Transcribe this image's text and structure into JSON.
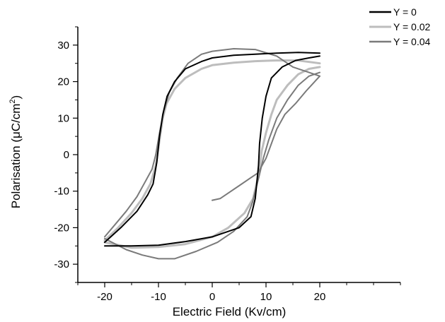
{
  "chart_data": {
    "type": "line",
    "title": "",
    "xlabel": "Electric Field (Kv/cm)",
    "ylabel_main": "Polarisation (μC/cm",
    "ylabel_sup": "2",
    "ylabel_close": ")",
    "xlim": [
      -25,
      35
    ],
    "ylim": [
      -35,
      35
    ],
    "x_ticks": [
      -20,
      -10,
      0,
      10,
      20
    ],
    "y_ticks": [
      -30,
      -20,
      -10,
      0,
      10,
      20,
      30
    ],
    "x_tick_labels": [
      "-20",
      "-10",
      "0",
      "10",
      "20"
    ],
    "y_tick_labels": [
      "-30",
      "-20",
      "-10",
      "0",
      "10",
      "20",
      "30"
    ],
    "grid": false,
    "legend_position": "top-right",
    "series": [
      {
        "name": "Y = 0",
        "color": "#000000",
        "upper": [
          [
            -20,
            -24
          ],
          [
            -17,
            -20
          ],
          [
            -14,
            -15.5
          ],
          [
            -12,
            -11
          ],
          [
            -11,
            -8
          ],
          [
            -10.3,
            -2
          ],
          [
            -9.8,
            5
          ],
          [
            -9.2,
            11
          ],
          [
            -8.4,
            16
          ],
          [
            -7,
            20
          ],
          [
            -5,
            23.5
          ],
          [
            -2,
            25.5
          ],
          [
            0,
            26.5
          ],
          [
            4,
            27.2
          ],
          [
            8,
            27.5
          ],
          [
            12,
            27.8
          ],
          [
            16,
            28
          ],
          [
            20,
            27.8
          ]
        ],
        "lower": [
          [
            20,
            27
          ],
          [
            18,
            26.5
          ],
          [
            15.5,
            25.8
          ],
          [
            13,
            24
          ],
          [
            11,
            21
          ],
          [
            10,
            16
          ],
          [
            9.3,
            10
          ],
          [
            8.8,
            3
          ],
          [
            8.6,
            -3
          ],
          [
            8,
            -12
          ],
          [
            7.2,
            -17
          ],
          [
            5,
            -20
          ],
          [
            0,
            -22.5
          ],
          [
            -5,
            -23.8
          ],
          [
            -10,
            -24.8
          ],
          [
            -15,
            -25
          ],
          [
            -20,
            -25
          ]
        ]
      },
      {
        "name": "Y = 0.02",
        "color": "#bdbdbd",
        "upper": [
          [
            -20,
            -23.5
          ],
          [
            -17.5,
            -20
          ],
          [
            -15,
            -16
          ],
          [
            -13,
            -12
          ],
          [
            -11.5,
            -8
          ],
          [
            -10.5,
            -3
          ],
          [
            -9.8,
            4
          ],
          [
            -9.2,
            10
          ],
          [
            -8.5,
            14
          ],
          [
            -7,
            18
          ],
          [
            -5,
            21
          ],
          [
            -2,
            23.5
          ],
          [
            0,
            24.5
          ],
          [
            4,
            25.2
          ],
          [
            8,
            25.6
          ],
          [
            12,
            25.8
          ],
          [
            16,
            25.8
          ],
          [
            20,
            25
          ]
        ],
        "lower": [
          [
            20,
            24
          ],
          [
            18,
            23.5
          ],
          [
            16,
            22
          ],
          [
            14,
            19
          ],
          [
            12,
            15
          ],
          [
            11,
            11
          ],
          [
            10,
            6
          ],
          [
            9.2,
            1
          ],
          [
            8.7,
            -5
          ],
          [
            7.6,
            -12
          ],
          [
            6,
            -16
          ],
          [
            3,
            -20
          ],
          [
            0,
            -22.5
          ],
          [
            -5,
            -24.5
          ],
          [
            -10,
            -25.3
          ],
          [
            -15,
            -25.5
          ],
          [
            -20,
            -24
          ]
        ]
      },
      {
        "name": "Y = 0.04",
        "color": "#7a7a7a",
        "initial": [
          [
            0,
            -12.5
          ],
          [
            1.5,
            -12
          ],
          [
            3,
            -10.5
          ],
          [
            5,
            -8.5
          ],
          [
            7,
            -6.5
          ],
          [
            8.5,
            -5
          ],
          [
            10,
            -1
          ],
          [
            11,
            3
          ],
          [
            12,
            7
          ],
          [
            13.5,
            11
          ],
          [
            15.5,
            14
          ],
          [
            17.5,
            17.5
          ],
          [
            20,
            21.5
          ]
        ],
        "upper": [
          [
            -20,
            -22.5
          ],
          [
            -18,
            -19
          ],
          [
            -16,
            -15.5
          ],
          [
            -14,
            -11.5
          ],
          [
            -12.5,
            -7.5
          ],
          [
            -11.2,
            -4
          ],
          [
            -10.5,
            0
          ],
          [
            -9.8,
            6
          ],
          [
            -9,
            12
          ],
          [
            -8,
            17
          ],
          [
            -6.5,
            21
          ],
          [
            -4.5,
            25
          ],
          [
            -2,
            27.5
          ],
          [
            0,
            28.3
          ],
          [
            4,
            29
          ],
          [
            8,
            28.8
          ],
          [
            12,
            27
          ],
          [
            15,
            24
          ],
          [
            18,
            22.5
          ],
          [
            20,
            21.5
          ]
        ],
        "lower": [
          [
            20,
            22.5
          ],
          [
            18,
            21.5
          ],
          [
            16,
            19
          ],
          [
            14,
            15
          ],
          [
            12,
            10
          ],
          [
            10.5,
            4
          ],
          [
            9.5,
            -1
          ],
          [
            8.7,
            -6
          ],
          [
            7.5,
            -13
          ],
          [
            6.5,
            -17
          ],
          [
            4,
            -21
          ],
          [
            1,
            -24
          ],
          [
            -3,
            -26.5
          ],
          [
            -7,
            -28.5
          ],
          [
            -10,
            -28.5
          ],
          [
            -13,
            -27.5
          ],
          [
            -16,
            -26
          ],
          [
            -20,
            -23
          ]
        ]
      }
    ]
  }
}
